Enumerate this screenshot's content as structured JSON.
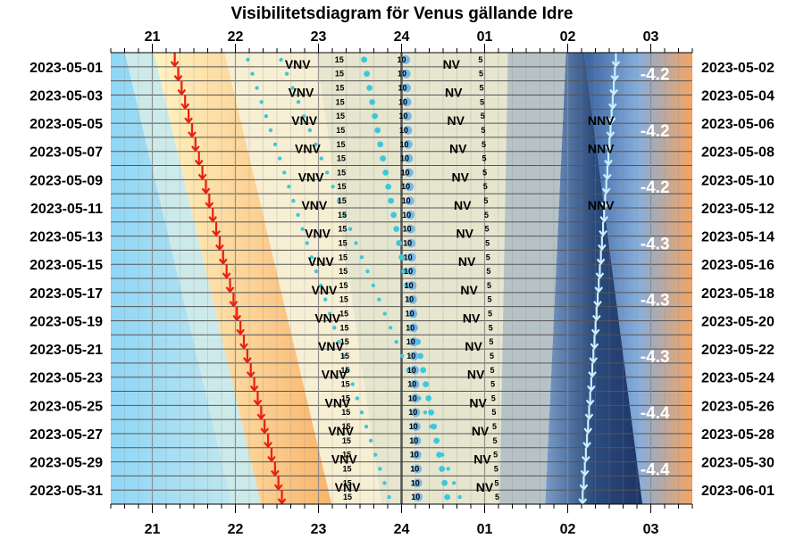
{
  "chart_data": {
    "type": "visibility-diagram",
    "title": "Visibilitetsdiagram för Venus gällande Idre",
    "hour_ticks": [
      "21",
      "22",
      "23",
      "24",
      "01",
      "02",
      "03"
    ],
    "left_dates": [
      "2023-05-01",
      "2023-05-03",
      "2023-05-05",
      "2023-05-07",
      "2023-05-09",
      "2023-05-11",
      "2023-05-13",
      "2023-05-15",
      "2023-05-17",
      "2023-05-19",
      "2023-05-21",
      "2023-05-23",
      "2023-05-25",
      "2023-05-27",
      "2023-05-29",
      "2023-05-31"
    ],
    "right_dates": [
      "2023-05-02",
      "2023-05-04",
      "2023-05-06",
      "2023-05-08",
      "2023-05-10",
      "2023-05-12",
      "2023-05-14",
      "2023-05-16",
      "2023-05-18",
      "2023-05-20",
      "2023-05-22",
      "2023-05-24",
      "2023-05-26",
      "2023-05-28",
      "2023-05-30",
      "2023-06-01"
    ],
    "x_range_hours": [
      20.5,
      27.5
    ],
    "days": 32,
    "sunset_hours": [
      21.27,
      22.56
    ],
    "sunrise_hours": [
      26.58,
      26.18
    ],
    "twilight_offset_hours": 0.25,
    "night_start_hours": [
      26.2,
      26.9
    ],
    "night_end_hours": [
      27.5,
      27.0
    ],
    "darkest_band_hours": [
      25.6,
      26.5
    ],
    "venus_set_direction_west": "VNV",
    "venus_set_direction_north": "NV",
    "sun_rise_direction": "NNV",
    "west_direction_rows": [
      0,
      2,
      4,
      6,
      8,
      10,
      12,
      14,
      16,
      18,
      20,
      22,
      24,
      26,
      28,
      30
    ],
    "nv_direction_rows": [
      0,
      2,
      4,
      6,
      8,
      10,
      12,
      14,
      16,
      18,
      20,
      22,
      24,
      26,
      28,
      30
    ],
    "nnv_direction_rows": [
      4,
      6,
      10
    ],
    "west_direction_hours": [
      22.75,
      23.35
    ],
    "nv_direction_hours": [
      24.6,
      25.0
    ],
    "nnv_direction_hour": 26.4,
    "altitude_labels": [
      "15",
      "10",
      "5"
    ],
    "altitude_label_hours": [
      [
        23.25,
        23.35
      ],
      [
        24.0,
        24.17
      ],
      [
        24.95,
        25.15
      ]
    ],
    "magnitudes": [
      {
        "row": 1,
        "label": "-4.2"
      },
      {
        "row": 5,
        "label": "-4.2"
      },
      {
        "row": 9,
        "label": "-4.2"
      },
      {
        "row": 13,
        "label": "-4.3"
      },
      {
        "row": 17,
        "label": "-4.3"
      },
      {
        "row": 21,
        "label": "-4.3"
      },
      {
        "row": 25,
        "label": "-4.4"
      },
      {
        "row": 29,
        "label": "-4.4"
      }
    ],
    "colors": {
      "day": "#7fd0f5",
      "twilight_light": "#cdeaea",
      "twilight_warm": "#fbbd77",
      "evening": "#f7efd4",
      "night": "#e6e6cf",
      "dawn_grey": "#b7c2c6",
      "dark": "#2f4f80",
      "sunset_arrow": "#e82010",
      "sunrise_arrow": "#c8f0ff",
      "venus": "#3cc8dc"
    }
  }
}
